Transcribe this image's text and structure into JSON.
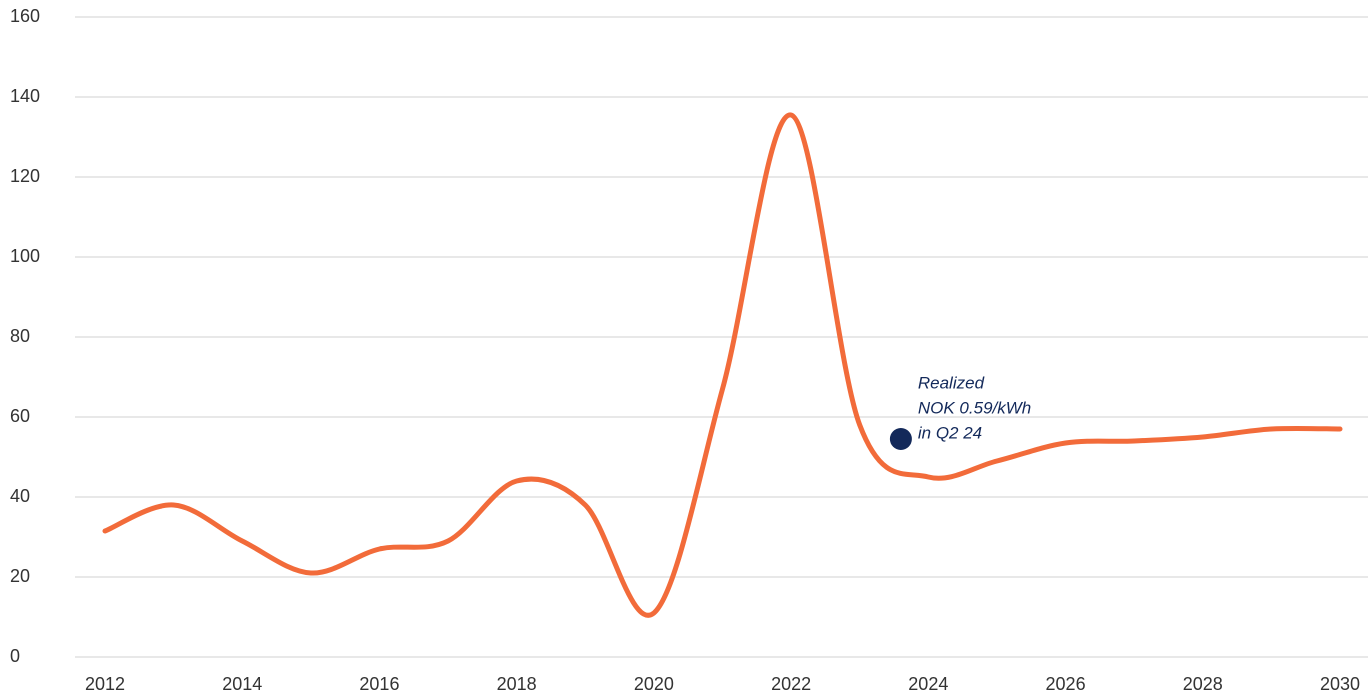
{
  "chart_data": {
    "type": "line",
    "x": [
      2012,
      2013,
      2014,
      2015,
      2016,
      2017,
      2018,
      2019,
      2020,
      2021,
      2022,
      2023,
      2024,
      2025,
      2026,
      2027,
      2028,
      2029,
      2030
    ],
    "series": [
      {
        "color": "#f26b3a",
        "values": [
          31.5,
          38,
          29,
          21,
          27,
          29,
          44,
          38,
          11,
          67,
          135.5,
          58,
          45,
          49,
          53.5,
          54,
          55,
          57,
          57
        ]
      }
    ],
    "xlim": [
      2012,
      2030
    ],
    "xticks": [
      2012,
      2014,
      2016,
      2018,
      2020,
      2022,
      2024,
      2026,
      2028,
      2030
    ],
    "ylim": [
      0,
      160
    ],
    "yticks": [
      0,
      20,
      40,
      60,
      80,
      100,
      120,
      140,
      160
    ],
    "grid": true,
    "annotation": {
      "x": 2023.6,
      "y": 54.5,
      "color": "#13295a",
      "lines": [
        "Realized",
        "NOK 0.59/kWh",
        "in Q2 24"
      ]
    }
  }
}
